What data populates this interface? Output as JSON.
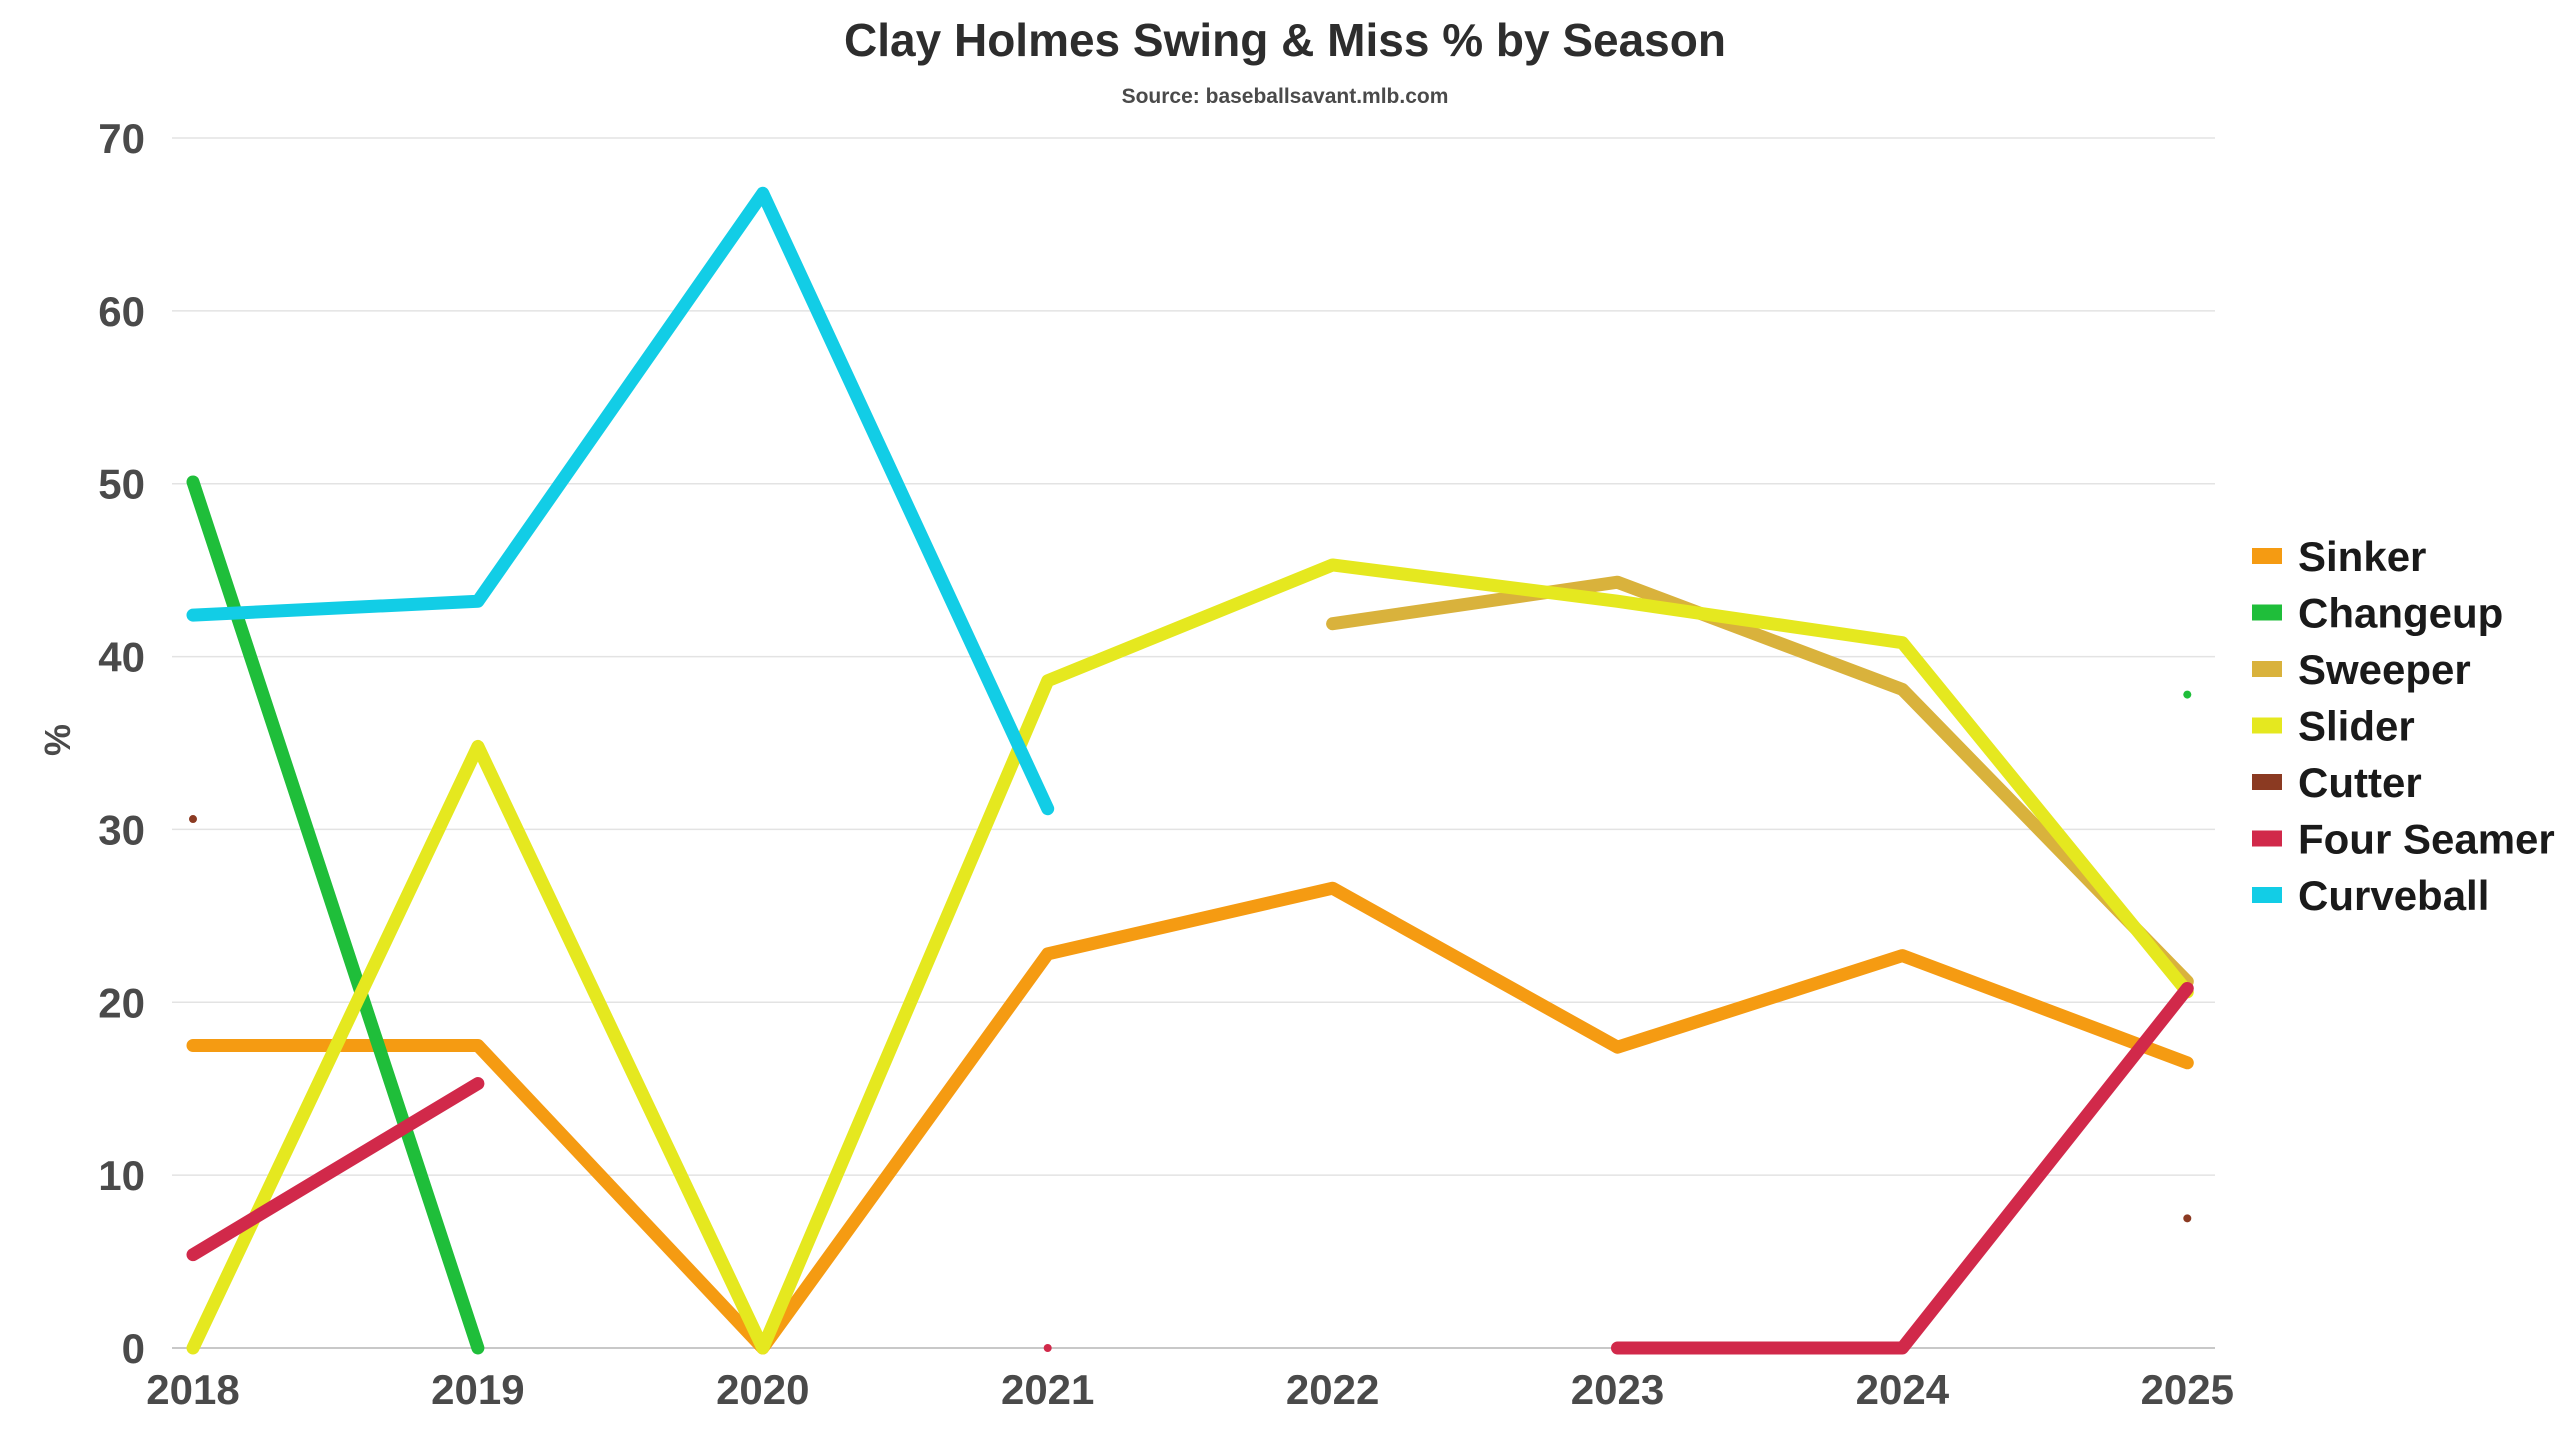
{
  "chart_data": {
    "type": "line",
    "title": "Clay Holmes Swing & Miss % by Season",
    "subtitle": "Source: baseballsavant.mlb.com",
    "xlabel": "",
    "ylabel": "%",
    "categories": [
      "2018",
      "2019",
      "2020",
      "2021",
      "2022",
      "2023",
      "2024",
      "2025"
    ],
    "yticks": [
      "0",
      "10",
      "20",
      "30",
      "40",
      "50",
      "60",
      "70"
    ],
    "ylim": [
      0,
      70
    ],
    "grid": true,
    "legend_position": "right",
    "series": [
      {
        "name": "Sinker",
        "color": "#f59b12",
        "values": [
          17.5,
          17.5,
          0,
          22.8,
          26.6,
          17.4,
          22.7,
          16.5
        ]
      },
      {
        "name": "Changeup",
        "color": "#1fbe3a",
        "values": [
          50.1,
          0,
          null,
          null,
          null,
          null,
          null,
          37.8
        ]
      },
      {
        "name": "Sweeper",
        "color": "#d9b23c",
        "values": [
          null,
          null,
          null,
          null,
          41.9,
          44.3,
          38.1,
          21.2
        ]
      },
      {
        "name": "Slider",
        "color": "#e5e81f",
        "values": [
          0,
          34.8,
          0,
          38.6,
          45.3,
          43.2,
          40.8,
          20.6
        ]
      },
      {
        "name": "Cutter",
        "color": "#8b3a22",
        "values": [
          30.6,
          null,
          null,
          null,
          null,
          null,
          null,
          7.5
        ]
      },
      {
        "name": "Four Seamer",
        "color": "#d1294a",
        "values": [
          5.4,
          15.3,
          null,
          0,
          null,
          0,
          0,
          20.8
        ]
      },
      {
        "name": "Curveball",
        "color": "#12cde6",
        "values": [
          42.4,
          43.2,
          66.8,
          31.2,
          null,
          null,
          null,
          null
        ]
      }
    ]
  }
}
